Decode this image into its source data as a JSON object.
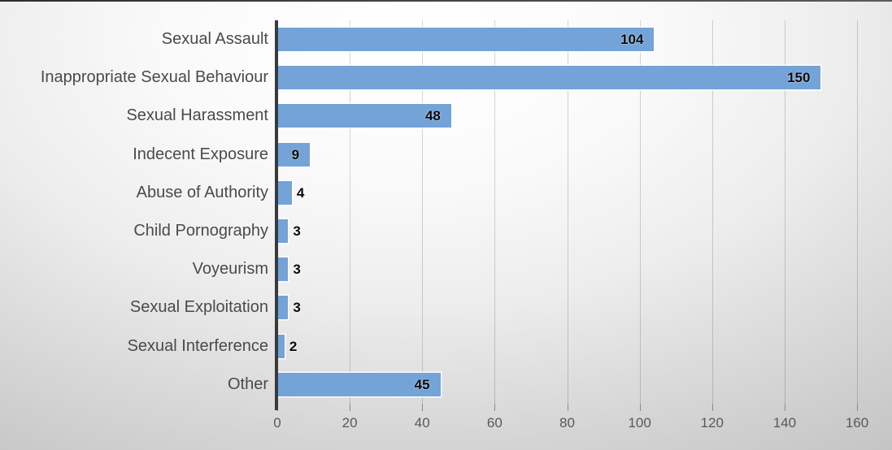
{
  "chart_data": {
    "type": "bar",
    "orientation": "horizontal",
    "title": "",
    "xlabel": "",
    "ylabel": "",
    "categories": [
      "Sexual Assault",
      "Inappropriate Sexual Behaviour",
      "Sexual Harassment",
      "Indecent Exposure",
      "Abuse of Authority",
      "Child Pornography",
      "Voyeurism",
      "Sexual Exploitation",
      "Sexual Interference",
      "Other"
    ],
    "values": [
      104,
      150,
      48,
      9,
      4,
      3,
      3,
      3,
      2,
      45
    ],
    "xlim": [
      0,
      160
    ],
    "x_ticks": [
      0,
      20,
      40,
      60,
      80,
      100,
      120,
      140,
      160
    ],
    "grid": true,
    "legend": false,
    "data_labels": true,
    "data_label_position": "inside-end"
  },
  "colors": {
    "bar_fill": "#73A3D7",
    "bar_outline": "#FFFFFF",
    "axis_line": "#3A3A3A",
    "gridline": "rgba(0,0,0,0.16)",
    "tick_label": "#595959",
    "category_label": "#4A4A4A",
    "data_label": "#0A0A0A"
  }
}
